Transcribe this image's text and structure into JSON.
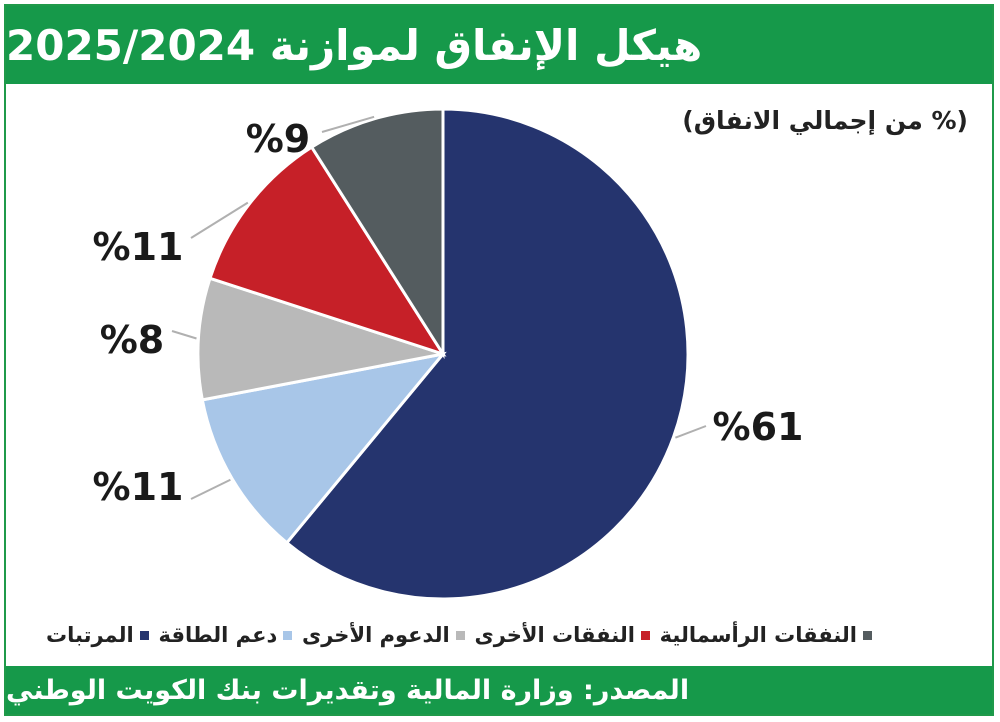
{
  "title": "هيكل الإنفاق لموازنة 2025/2024",
  "subtitle": "(% من إجمالي الانفاق)",
  "source": "المصدر: وزارة المالية وتقديرات بنك الكويت الوطني",
  "chart_data": {
    "type": "pie",
    "slices": [
      {
        "name": "المرتبات",
        "value": 61,
        "label": "%61",
        "color": "#25346e"
      },
      {
        "name": "دعم الطاقة",
        "value": 11,
        "label": "%11",
        "color": "#a8c6e8"
      },
      {
        "name": "الدعوم الأخرى",
        "value": 8,
        "label": "%8",
        "color": "#b9b9b9"
      },
      {
        "name": "النفقات الأخرى",
        "value": 11,
        "label": "%11",
        "color": "#c62028"
      },
      {
        "name": "النفقات الرأسمالية",
        "value": 9,
        "label": "%9",
        "color": "#545c5f"
      }
    ],
    "legend_position": "bottom"
  }
}
